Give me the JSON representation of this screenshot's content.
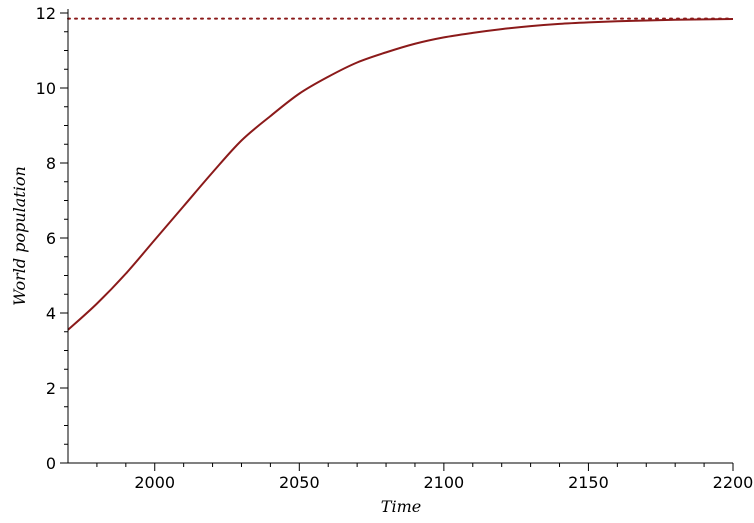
{
  "chart_data": {
    "type": "line",
    "title": "",
    "xlabel": "Time",
    "ylabel": "World population",
    "xlim": [
      1970,
      2200
    ],
    "ylim": [
      0,
      12
    ],
    "xticks": [
      2000,
      2050,
      2100,
      2150,
      2200
    ],
    "yticks": [
      0,
      2,
      4,
      6,
      8,
      10,
      12
    ],
    "grid": false,
    "series": [
      {
        "style": "solid",
        "color": "#8b1a1a",
        "x": [
          1970,
          1980,
          1990,
          2000,
          2010,
          2020,
          2030,
          2040,
          2050,
          2060,
          2070,
          2080,
          2090,
          2100,
          2110,
          2120,
          2130,
          2140,
          2150,
          2160,
          2170,
          2180,
          2190,
          2200
        ],
        "y": [
          3.55,
          4.25,
          5.05,
          5.95,
          6.85,
          7.75,
          8.6,
          9.25,
          9.85,
          10.3,
          10.68,
          10.95,
          11.18,
          11.35,
          11.47,
          11.57,
          11.65,
          11.71,
          11.75,
          11.78,
          11.8,
          11.82,
          11.83,
          11.84
        ]
      },
      {
        "style": "dotted",
        "color": "#8b1a1a",
        "x": [
          1970,
          2200
        ],
        "y": [
          11.85,
          11.85
        ]
      }
    ]
  }
}
